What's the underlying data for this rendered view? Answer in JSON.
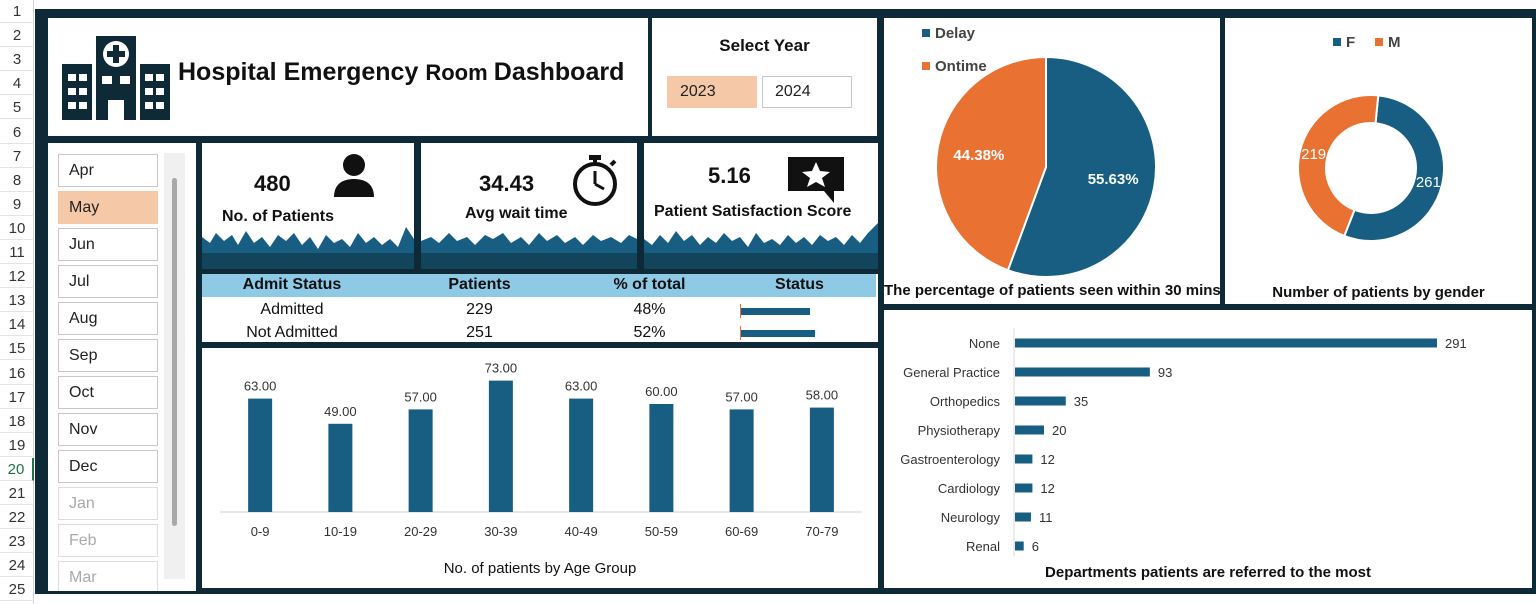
{
  "spreadsheet": {
    "row_numbers": [
      "1",
      "2",
      "3",
      "4",
      "5",
      "6",
      "7",
      "8",
      "9",
      "10",
      "11",
      "12",
      "13",
      "14",
      "15",
      "16",
      "17",
      "18",
      "19",
      "20",
      "21",
      "22",
      "23",
      "24",
      "25"
    ],
    "active_row": "20"
  },
  "header": {
    "title_main": "Hospital Emergency ",
    "title_mid": "Room ",
    "title_end": "Dashboard"
  },
  "year_slicer": {
    "title": "Select Year",
    "options": [
      {
        "label": "2023",
        "selected": true
      },
      {
        "label": "2024",
        "selected": false
      }
    ]
  },
  "month_slicer": {
    "items": [
      {
        "label": "Apr",
        "selected": false,
        "dim": false
      },
      {
        "label": "May",
        "selected": true,
        "dim": false
      },
      {
        "label": "Jun",
        "selected": false,
        "dim": false
      },
      {
        "label": "Jul",
        "selected": false,
        "dim": false
      },
      {
        "label": "Aug",
        "selected": false,
        "dim": false
      },
      {
        "label": "Sep",
        "selected": false,
        "dim": false
      },
      {
        "label": "Oct",
        "selected": false,
        "dim": false
      },
      {
        "label": "Nov",
        "selected": false,
        "dim": false
      },
      {
        "label": "Dec",
        "selected": false,
        "dim": false
      },
      {
        "label": "Jan",
        "selected": false,
        "dim": true
      },
      {
        "label": "Feb",
        "selected": false,
        "dim": true
      },
      {
        "label": "Mar",
        "selected": false,
        "dim": true
      }
    ]
  },
  "kpis": {
    "patients": {
      "value": "480",
      "label": "No. of Patients",
      "icon": "person-icon"
    },
    "wait": {
      "value": "34.43",
      "label": "Avg wait time",
      "icon": "stopwatch-icon"
    },
    "satisfaction": {
      "value": "5.16",
      "label": "Patient Satisfaction Score",
      "icon": "star-chat-icon"
    }
  },
  "admit_table": {
    "headers": [
      "Admit Status",
      "Patients",
      "% of total",
      "Status"
    ],
    "rows": [
      {
        "status": "Admitted",
        "patients": "229",
        "pct": "48%",
        "fraction": 0.48
      },
      {
        "status": "Not Admitted",
        "patients": "251",
        "pct": "52%",
        "fraction": 0.52
      }
    ]
  },
  "colors": {
    "navy": "#175e82",
    "orange": "#e97132",
    "dark": "#0d2a36",
    "highlight": "#f5c8a8",
    "header_blue": "#8ecae6"
  },
  "chart_data": [
    {
      "type": "bar",
      "title": "No. of patients by Age Group",
      "categories": [
        "0-9",
        "10-19",
        "20-29",
        "30-39",
        "40-49",
        "50-59",
        "60-69",
        "70-79"
      ],
      "values": [
        63,
        49,
        57,
        73,
        63,
        60,
        57,
        58
      ],
      "value_labels": [
        "63.00",
        "49.00",
        "57.00",
        "73.00",
        "63.00",
        "60.00",
        "57.00",
        "58.00"
      ],
      "ylim": [
        0,
        80
      ],
      "color": "#175e82"
    },
    {
      "type": "pie",
      "title": "The percentage of patients seen within 30 mins",
      "labels": [
        "Delay",
        "Ontime"
      ],
      "values": [
        55.63,
        44.38
      ],
      "value_labels": [
        "55.63%",
        "44.38%"
      ],
      "colors": [
        "#175e82",
        "#e97132"
      ],
      "legend": "top-left"
    },
    {
      "type": "pie",
      "subtype": "donut",
      "title": "Number of patients by gender",
      "labels": [
        "F",
        "M"
      ],
      "values": [
        261,
        219
      ],
      "value_labels": [
        "261",
        "219"
      ],
      "colors": [
        "#175e82",
        "#e97132"
      ],
      "legend": "top"
    },
    {
      "type": "bar",
      "orientation": "horizontal",
      "title": "Departments patients are referred to the most",
      "categories": [
        "None",
        "General Practice",
        "Orthopedics",
        "Physiotherapy",
        "Gastroenterology",
        "Cardiology",
        "Neurology",
        "Renal"
      ],
      "values": [
        291,
        93,
        35,
        20,
        12,
        12,
        11,
        6
      ],
      "value_labels": [
        "291",
        "93",
        "35",
        "20",
        "12",
        "12",
        "11",
        "6"
      ],
      "color": "#175e82"
    }
  ]
}
